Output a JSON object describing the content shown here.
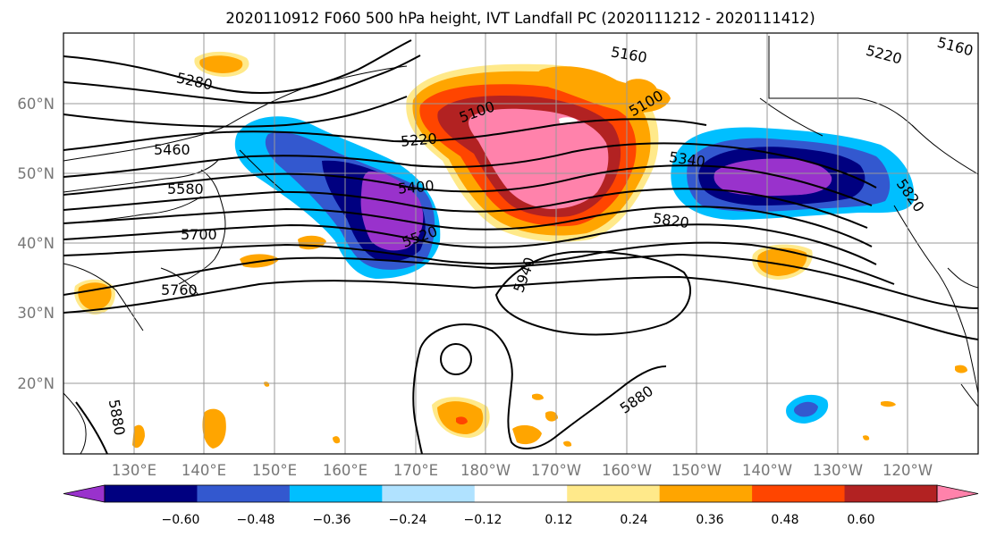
{
  "title": "2020110912 F060 500 hPa height, IVT Landfall PC (2020111212 - 2020111412)",
  "map": {
    "lat_labels": [
      "60°N",
      "50°N",
      "40°N",
      "30°N",
      "20°N"
    ],
    "lon_labels": [
      "130°E",
      "140°E",
      "150°E",
      "160°E",
      "170°E",
      "180°W",
      "170°W",
      "160°W",
      "150°W",
      "140°W",
      "130°W",
      "120°W"
    ],
    "contour_labels": [
      "5280",
      "5160",
      "5220",
      "5100",
      "5100",
      "5220",
      "5460",
      "5580",
      "5400",
      "5700",
      "5520",
      "5760",
      "5340",
      "5820",
      "5820",
      "5940",
      "5880",
      "5880",
      "5160"
    ]
  },
  "colorbar": {
    "tick_labels": [
      "−0.60",
      "−0.48",
      "−0.36",
      "−0.24",
      "−0.12",
      "0.12",
      "0.24",
      "0.36",
      "0.48",
      "0.60"
    ],
    "colors": [
      "#9932cc",
      "#000080",
      "#3358cf",
      "#00bfff",
      "#b0e2ff",
      "#ffffff",
      "#ffe98a",
      "#ffa500",
      "#ff4500",
      "#b22222",
      "#ff82ab"
    ]
  }
}
